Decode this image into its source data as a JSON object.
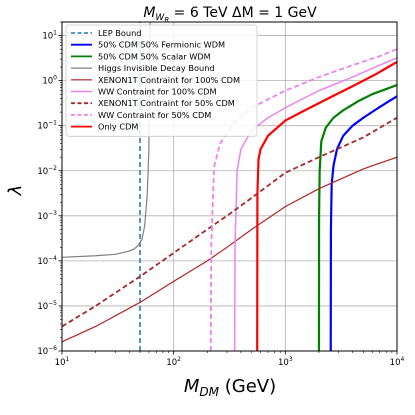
{
  "chart_data": {
    "type": "line",
    "title_parts": {
      "m": "M",
      "w": "W",
      "r": "R",
      "rest": " = 6 TeV  ΔM = 1 GeV"
    },
    "xlabel_parts": {
      "m": "M",
      "sub": "DM",
      "unit": " (GeV)"
    },
    "ylabel": "λ",
    "xscale": "log",
    "yscale": "log",
    "xlim": [
      10,
      10000
    ],
    "ylim": [
      1e-06,
      20
    ],
    "grid": true,
    "legend_position": "top-left",
    "x_tick_labels": [
      {
        "value": 10,
        "base": "10",
        "exp": "1"
      },
      {
        "value": 100,
        "base": "10",
        "exp": "2"
      },
      {
        "value": 1000,
        "base": "10",
        "exp": "3"
      },
      {
        "value": 10000,
        "base": "10",
        "exp": "4"
      }
    ],
    "y_tick_labels": [
      {
        "value": 1e-06,
        "base": "10",
        "exp": "−6"
      },
      {
        "value": 1e-05,
        "base": "10",
        "exp": "−5"
      },
      {
        "value": 0.0001,
        "base": "10",
        "exp": "−4"
      },
      {
        "value": 0.001,
        "base": "10",
        "exp": "−3"
      },
      {
        "value": 0.01,
        "base": "10",
        "exp": "−2"
      },
      {
        "value": 0.1,
        "base": "10",
        "exp": "−1"
      },
      {
        "value": 1,
        "base": "10",
        "exp": "0"
      },
      {
        "value": 10,
        "base": "10",
        "exp": "1"
      }
    ],
    "series": [
      {
        "name": "LEP Bound",
        "color": "#1f77b4",
        "dash": "dashed",
        "width": 1.5,
        "x": [
          50,
          50
        ],
        "y": [
          1e-06,
          20
        ]
      },
      {
        "name": "50% CDM 50% Fermionic WDM",
        "color": "#0000ff",
        "dash": "solid",
        "width": 2.2,
        "x": [
          2550,
          2560,
          2600,
          2700,
          2900,
          3300,
          4000,
          5000,
          6500,
          8000,
          10000
        ],
        "y": [
          1e-06,
          0.0005,
          0.005,
          0.013,
          0.03,
          0.06,
          0.1,
          0.15,
          0.23,
          0.32,
          0.45
        ]
      },
      {
        "name": "50% CDM 50% Scalar WDM",
        "color": "#008000",
        "dash": "solid",
        "width": 2.2,
        "x": [
          2000,
          2005,
          2030,
          2100,
          2300,
          2700,
          3300,
          4500,
          6000,
          8000,
          10000
        ],
        "y": [
          1e-06,
          0.001,
          0.01,
          0.045,
          0.09,
          0.15,
          0.22,
          0.35,
          0.5,
          0.65,
          0.8
        ]
      },
      {
        "name": "Higgs Invisible Decay Bound",
        "color": "#808080",
        "dash": "solid",
        "width": 1.2,
        "x": [
          10,
          20,
          30,
          38,
          44,
          48,
          52,
          55,
          58,
          60,
          61.5
        ],
        "y": [
          0.00012,
          0.00013,
          0.00014,
          0.00016,
          0.00018,
          0.00022,
          0.0003,
          0.0006,
          0.003,
          0.03,
          20
        ]
      },
      {
        "name": "XENON1T Contraint for 100% CDM",
        "color": "#b22222",
        "dash": "solid",
        "width": 1.2,
        "x": [
          10,
          20,
          50,
          100,
          200,
          300,
          500,
          1000,
          2000,
          5000,
          10000
        ],
        "y": [
          1.6e-06,
          3.5e-06,
          1.2e-05,
          3.5e-05,
          0.0001,
          0.0002,
          0.0005,
          0.0016,
          0.004,
          0.011,
          0.02
        ]
      },
      {
        "name": "WW Contraint for 100% CDM",
        "color": "#ee82ee",
        "dash": "solid",
        "width": 1.5,
        "x": [
          352,
          354,
          370,
          400,
          500,
          700,
          1000,
          2000,
          4000,
          7000,
          10000
        ],
        "y": [
          1e-06,
          0.0002,
          0.01,
          0.03,
          0.08,
          0.15,
          0.25,
          0.6,
          1.2,
          2.2,
          3.2
        ]
      },
      {
        "name": "XENON1T Contraint for 50% CDM",
        "color": "#a52a2a",
        "dash": "dashed",
        "width": 1.8,
        "x": [
          10,
          20,
          50,
          100,
          200,
          300,
          500,
          1000,
          2000,
          5000,
          10000
        ],
        "y": [
          3.5e-06,
          1e-05,
          4.5e-05,
          0.00015,
          0.0005,
          0.001,
          0.0025,
          0.009,
          0.02,
          0.055,
          0.15
        ]
      },
      {
        "name": "WW Contraint for 50% CDM",
        "color": "#ee82ee",
        "dash": "dashed",
        "width": 1.8,
        "x": [
          215,
          217,
          230,
          260,
          350,
          500,
          1000,
          2000,
          4000,
          7000,
          10000
        ],
        "y": [
          1e-06,
          0.0002,
          0.012,
          0.04,
          0.12,
          0.25,
          0.6,
          1.2,
          2.2,
          3.5,
          5
        ]
      },
      {
        "name": "Only CDM",
        "color": "#ff0000",
        "dash": "solid",
        "width": 2.2,
        "x": [
          560,
          562,
          575,
          600,
          700,
          1000,
          1500,
          2500,
          4000,
          6500,
          10000
        ],
        "y": [
          1e-06,
          0.003,
          0.018,
          0.03,
          0.06,
          0.13,
          0.22,
          0.42,
          0.75,
          1.4,
          2.6
        ]
      }
    ]
  }
}
